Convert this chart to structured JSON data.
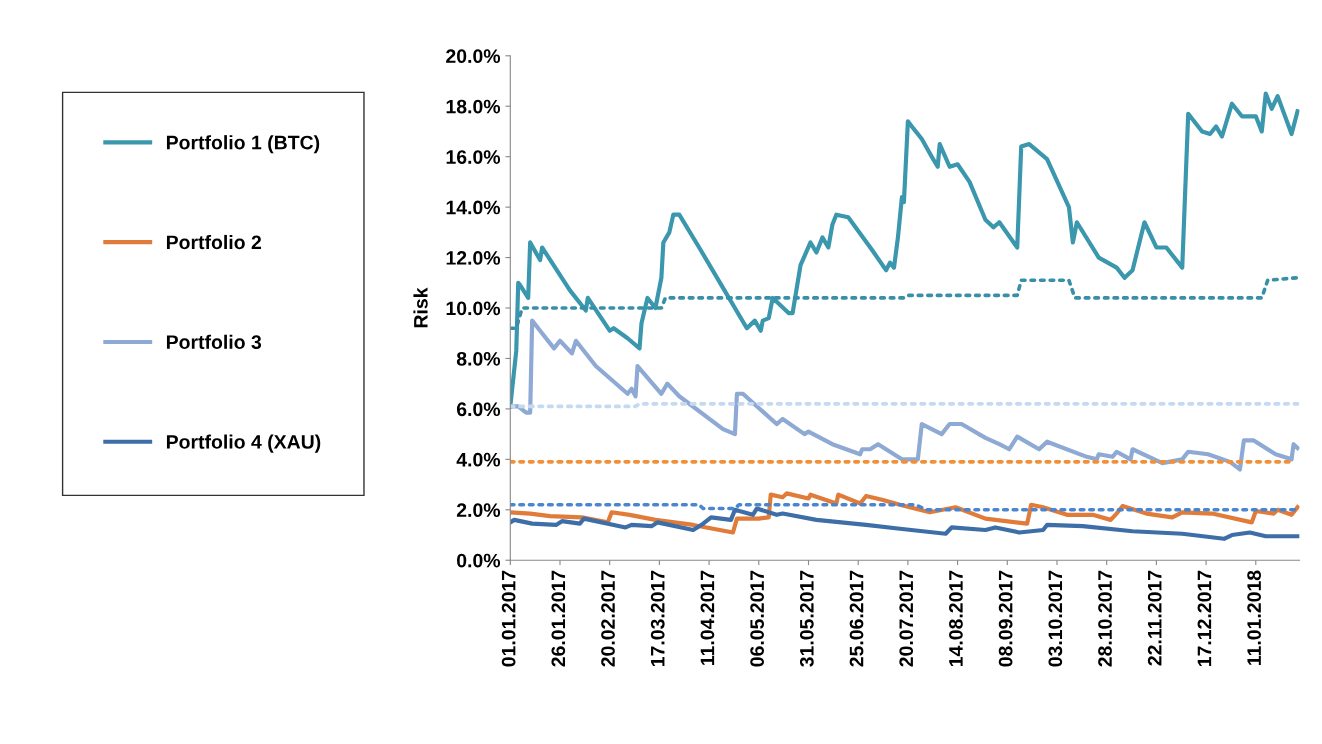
{
  "chart_data": {
    "type": "line",
    "ylabel": "Risk",
    "xlim": [
      "2017-01-01",
      "2018-02-02"
    ],
    "xticks": [
      {
        "value": "2017-01-01",
        "label": "01.01.2017"
      },
      {
        "value": "2017-01-26",
        "label": "26.01.2017"
      },
      {
        "value": "2017-02-20",
        "label": "20.02.2017"
      },
      {
        "value": "2017-03-17",
        "label": "17.03.2017"
      },
      {
        "value": "2017-04-11",
        "label": "11.04.2017"
      },
      {
        "value": "2017-05-06",
        "label": "06.05.2017"
      },
      {
        "value": "2017-05-31",
        "label": "31.05.2017"
      },
      {
        "value": "2017-06-25",
        "label": "25.06.2017"
      },
      {
        "value": "2017-07-20",
        "label": "20.07.2017"
      },
      {
        "value": "2017-08-14",
        "label": "14.08.2017"
      },
      {
        "value": "2017-09-08",
        "label": "08.09.2017"
      },
      {
        "value": "2017-10-03",
        "label": "03.10.2017"
      },
      {
        "value": "2017-10-28",
        "label": "28.10.2017"
      },
      {
        "value": "2017-11-22",
        "label": "22.11.2017"
      },
      {
        "value": "2017-12-17",
        "label": "17.12.2017"
      },
      {
        "value": "2018-01-11",
        "label": "11.01.2018"
      }
    ],
    "ylim": [
      0,
      20
    ],
    "yticks": [
      {
        "value": 0,
        "label": "0.0%"
      },
      {
        "value": 2,
        "label": "2.0%"
      },
      {
        "value": 4,
        "label": "4.0%"
      },
      {
        "value": 6,
        "label": "6.0%"
      },
      {
        "value": 8,
        "label": "8.0%"
      },
      {
        "value": 10,
        "label": "10.0%"
      },
      {
        "value": 12,
        "label": "12.0%"
      },
      {
        "value": 14,
        "label": "14.0%"
      },
      {
        "value": 16,
        "label": "16.0%"
      },
      {
        "value": 18,
        "label": "18.0%"
      },
      {
        "value": 20,
        "label": "20.0%"
      }
    ],
    "grid": false,
    "legend": "left",
    "marker": "none",
    "series": [
      {
        "name": "Portfolio 1 (BTC)",
        "color": "#3a97ad",
        "line_style": "solid",
        "x": [
          "2017-01-01",
          "2017-01-04",
          "2017-01-05",
          "2017-01-06",
          "2017-01-10",
          "2017-01-11",
          "2017-01-16",
          "2017-01-17",
          "2017-01-31",
          "2017-02-08",
          "2017-02-09",
          "2017-02-20",
          "2017-02-22",
          "2017-03-01",
          "2017-03-07",
          "2017-03-08",
          "2017-03-11",
          "2017-03-15",
          "2017-03-18",
          "2017-03-19",
          "2017-03-22",
          "2017-03-24",
          "2017-03-27",
          "2017-04-06",
          "2017-04-18",
          "2017-04-30",
          "2017-05-04",
          "2017-05-07",
          "2017-05-08",
          "2017-05-11",
          "2017-05-13",
          "2017-05-21",
          "2017-05-23",
          "2017-05-27",
          "2017-06-01",
          "2017-06-04",
          "2017-06-07",
          "2017-06-10",
          "2017-06-12",
          "2017-06-14",
          "2017-06-20",
          "2017-07-02",
          "2017-07-09",
          "2017-07-11",
          "2017-07-13",
          "2017-07-15",
          "2017-07-17",
          "2017-07-18",
          "2017-07-20",
          "2017-07-22",
          "2017-07-27",
          "2017-08-01",
          "2017-08-04",
          "2017-08-05",
          "2017-08-10",
          "2017-08-14",
          "2017-08-20",
          "2017-08-28",
          "2017-09-01",
          "2017-09-04",
          "2017-09-13",
          "2017-09-15",
          "2017-09-19",
          "2017-09-28",
          "2017-10-09",
          "2017-10-11",
          "2017-10-13",
          "2017-10-24",
          "2017-11-02",
          "2017-11-06",
          "2017-11-10",
          "2017-11-16",
          "2017-11-22",
          "2017-11-27",
          "2017-12-05",
          "2017-12-08",
          "2017-12-15",
          "2017-12-19",
          "2017-12-22",
          "2017-12-25",
          "2017-12-30",
          "2018-01-04",
          "2018-01-11",
          "2018-01-14",
          "2018-01-16",
          "2018-01-19",
          "2018-01-22",
          "2018-01-29",
          "2018-02-01"
        ],
        "values": [
          6.1,
          8.3,
          11.0,
          10.9,
          10.4,
          12.6,
          11.9,
          12.4,
          10.7,
          9.9,
          10.4,
          9.1,
          9.2,
          8.8,
          8.4,
          9.4,
          10.4,
          10.0,
          11.2,
          12.6,
          13.0,
          13.7,
          13.7,
          12.4,
          10.8,
          9.2,
          9.5,
          9.1,
          9.5,
          9.6,
          10.4,
          9.8,
          9.8,
          11.7,
          12.6,
          12.2,
          12.8,
          12.4,
          13.3,
          13.7,
          13.6,
          12.3,
          11.5,
          11.8,
          11.6,
          12.8,
          14.4,
          14.2,
          17.4,
          17.2,
          16.7,
          16.0,
          15.6,
          16.5,
          15.6,
          15.7,
          15.0,
          13.5,
          13.2,
          13.4,
          12.4,
          16.4,
          16.5,
          15.9,
          14.0,
          12.6,
          13.4,
          12.0,
          11.6,
          11.2,
          11.5,
          13.4,
          12.4,
          12.4,
          11.6,
          17.7,
          17.0,
          16.9,
          17.2,
          16.8,
          18.1,
          17.6,
          17.6,
          17.0,
          18.5,
          17.9,
          18.4,
          16.9,
          17.8
        ]
      },
      {
        "name": "Portfolio 2",
        "color": "#e07b39",
        "line_style": "solid",
        "x": [
          "2017-01-01",
          "2017-01-11",
          "2017-01-21",
          "2017-02-06",
          "2017-02-19",
          "2017-02-21",
          "2017-03-02",
          "2017-03-15",
          "2017-04-03",
          "2017-04-13",
          "2017-04-23",
          "2017-04-25",
          "2017-05-06",
          "2017-05-11",
          "2017-05-12",
          "2017-05-18",
          "2017-05-20",
          "2017-05-31",
          "2017-06-01",
          "2017-06-14",
          "2017-06-15",
          "2017-06-26",
          "2017-06-29",
          "2017-07-07",
          "2017-07-16",
          "2017-07-31",
          "2017-08-13",
          "2017-08-28",
          "2017-09-18",
          "2017-09-20",
          "2017-09-26",
          "2017-10-08",
          "2017-10-21",
          "2017-10-30",
          "2017-11-02",
          "2017-11-05",
          "2017-11-17",
          "2017-11-30",
          "2017-12-05",
          "2017-12-20",
          "2018-01-09",
          "2018-01-11",
          "2018-01-20",
          "2018-01-22",
          "2018-01-29",
          "2018-02-01"
        ],
        "values": [
          1.9,
          1.85,
          1.75,
          1.7,
          1.5,
          1.9,
          1.8,
          1.6,
          1.4,
          1.25,
          1.1,
          1.65,
          1.65,
          1.7,
          2.6,
          2.5,
          2.65,
          2.45,
          2.6,
          2.25,
          2.6,
          2.25,
          2.55,
          2.4,
          2.2,
          1.9,
          2.1,
          1.65,
          1.45,
          2.2,
          2.1,
          1.8,
          1.8,
          1.6,
          1.85,
          2.15,
          1.85,
          1.7,
          1.9,
          1.85,
          1.5,
          1.95,
          1.85,
          2.0,
          1.8,
          2.1
        ]
      },
      {
        "name": "Portfolio 3",
        "color": "#8ea9d4",
        "line_style": "solid",
        "x": [
          "2017-01-02",
          "2017-01-05",
          "2017-01-09",
          "2017-01-11",
          "2017-01-12",
          "2017-01-16",
          "2017-01-23",
          "2017-01-26",
          "2017-02-01",
          "2017-02-03",
          "2017-02-13",
          "2017-03-01",
          "2017-03-03",
          "2017-03-05",
          "2017-03-06",
          "2017-03-18",
          "2017-03-21",
          "2017-03-27",
          "2017-04-18",
          "2017-04-24",
          "2017-04-25",
          "2017-04-28",
          "2017-05-15",
          "2017-05-18",
          "2017-05-29",
          "2017-05-31",
          "2017-06-12",
          "2017-06-26",
          "2017-06-27",
          "2017-07-01",
          "2017-07-05",
          "2017-07-17",
          "2017-07-25",
          "2017-07-27",
          "2017-08-06",
          "2017-08-10",
          "2017-08-16",
          "2017-08-28",
          "2017-09-04",
          "2017-09-09",
          "2017-09-13",
          "2017-09-24",
          "2017-09-28",
          "2017-10-18",
          "2017-10-23",
          "2017-10-24",
          "2017-10-31",
          "2017-11-02",
          "2017-11-09",
          "2017-11-10",
          "2017-11-25",
          "2017-12-05",
          "2017-12-08",
          "2017-12-18",
          "2017-12-29",
          "2018-01-03",
          "2018-01-05",
          "2018-01-10",
          "2018-01-21",
          "2018-01-29",
          "2018-01-30",
          "2018-02-01"
        ],
        "values": [
          6.1,
          6.1,
          5.85,
          5.85,
          9.5,
          9.1,
          8.4,
          8.7,
          8.2,
          8.7,
          7.7,
          6.6,
          6.8,
          6.5,
          7.7,
          6.6,
          7.0,
          6.5,
          5.2,
          5.0,
          6.6,
          6.6,
          5.4,
          5.6,
          5.0,
          5.1,
          4.6,
          4.2,
          4.4,
          4.4,
          4.6,
          4.0,
          4.0,
          5.4,
          5.0,
          5.4,
          5.4,
          4.85,
          4.6,
          4.4,
          4.9,
          4.4,
          4.7,
          4.1,
          4.0,
          4.2,
          4.1,
          4.3,
          4.0,
          4.4,
          3.85,
          4.0,
          4.3,
          4.2,
          3.9,
          3.6,
          4.75,
          4.75,
          4.2,
          4.0,
          4.6,
          4.45
        ]
      },
      {
        "name": "Portfolio 4 (XAU)",
        "color": "#3d6ea8",
        "line_style": "solid",
        "x": [
          "2017-01-01",
          "2017-01-03",
          "2017-01-12",
          "2017-01-24",
          "2017-01-27",
          "2017-02-05",
          "2017-02-07",
          "2017-02-28",
          "2017-03-03",
          "2017-03-13",
          "2017-03-16",
          "2017-04-03",
          "2017-04-08",
          "2017-04-12",
          "2017-04-22",
          "2017-04-24",
          "2017-05-03",
          "2017-05-05",
          "2017-05-15",
          "2017-05-18",
          "2017-06-04",
          "2017-06-29",
          "2017-07-16",
          "2017-08-08",
          "2017-08-11",
          "2017-08-28",
          "2017-09-02",
          "2017-09-14",
          "2017-09-26",
          "2017-09-28",
          "2017-10-16",
          "2017-11-10",
          "2017-12-05",
          "2017-12-26",
          "2017-12-30",
          "2018-01-08",
          "2018-01-16",
          "2018-02-01"
        ],
        "values": [
          1.5,
          1.6,
          1.45,
          1.4,
          1.55,
          1.45,
          1.65,
          1.3,
          1.4,
          1.35,
          1.5,
          1.2,
          1.45,
          1.7,
          1.6,
          2.0,
          1.8,
          2.05,
          1.8,
          1.85,
          1.6,
          1.4,
          1.25,
          1.05,
          1.3,
          1.2,
          1.3,
          1.1,
          1.2,
          1.4,
          1.35,
          1.15,
          1.05,
          0.85,
          1.0,
          1.1,
          0.95,
          0.95
        ]
      },
      {
        "color": "#3a8fa8",
        "line_style": "dotted",
        "x": [
          "2017-01-01",
          "2017-01-04",
          "2017-01-07",
          "2017-03-18",
          "2017-03-20",
          "2017-07-18",
          "2017-07-20",
          "2017-09-13",
          "2017-09-15",
          "2017-10-09",
          "2017-10-12",
          "2018-01-14",
          "2018-01-17",
          "2018-02-01"
        ],
        "values": [
          9.2,
          9.2,
          10.0,
          10.0,
          10.4,
          10.4,
          10.5,
          10.5,
          11.1,
          11.1,
          10.4,
          10.4,
          11.1,
          11.2
        ]
      },
      {
        "color": "#f0913a",
        "line_style": "dotted",
        "x": [
          "2017-01-01",
          "2018-01-29"
        ],
        "values": [
          3.9,
          3.9
        ]
      },
      {
        "color": "#c5d9f0",
        "line_style": "dotted",
        "x": [
          "2017-01-01",
          "2017-03-05",
          "2017-03-07",
          "2018-02-01"
        ],
        "values": [
          6.1,
          6.1,
          6.2,
          6.2
        ]
      },
      {
        "color": "#4a86d0",
        "line_style": "dotted",
        "x": [
          "2017-01-01",
          "2017-04-06",
          "2017-04-08",
          "2017-04-24",
          "2017-04-26",
          "2017-07-24",
          "2017-07-29",
          "2018-02-01"
        ],
        "values": [
          2.2,
          2.2,
          2.05,
          2.05,
          2.2,
          2.2,
          2.0,
          2.0
        ]
      }
    ]
  }
}
